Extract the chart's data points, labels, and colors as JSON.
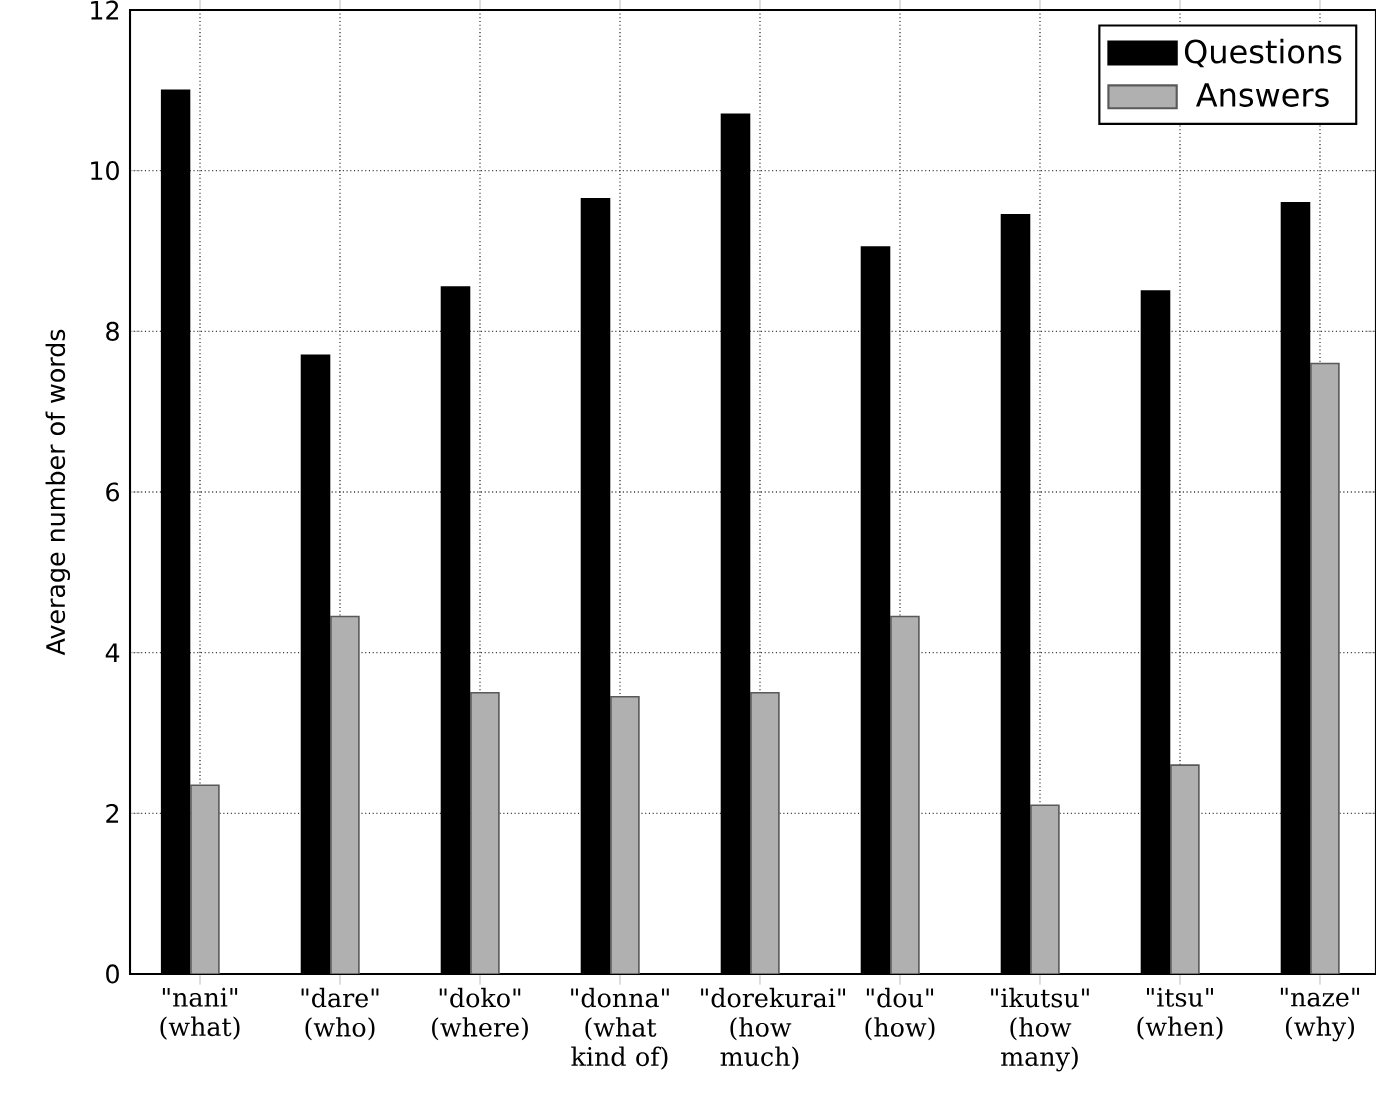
{
  "chart_data": {
    "type": "bar",
    "ylabel": "Average number of words",
    "categories": [
      "\"nani\" (what)",
      "\"dare\" (who)",
      "\"doko\" (where)",
      "\"donna\" (what kind of)",
      "\"dorekurai\" (how much)",
      "\"dou\" (how)",
      "\"ikutsu\" (how many)",
      "\"itsu\" (when)",
      "\"naze\" (why)"
    ],
    "series": [
      {
        "name": "Questions",
        "color": "#000000",
        "values": [
          11.0,
          7.7,
          8.55,
          9.65,
          10.7,
          9.05,
          9.45,
          8.5,
          9.6
        ]
      },
      {
        "name": "Answers",
        "color": "#b0b0b0",
        "values": [
          2.35,
          4.45,
          3.5,
          3.45,
          3.5,
          4.45,
          2.1,
          2.6,
          7.6
        ]
      }
    ],
    "ylim": [
      0,
      12
    ],
    "yticks": [
      0,
      2,
      4,
      6,
      8,
      10,
      12
    ],
    "grid": true,
    "legend": "top right"
  }
}
